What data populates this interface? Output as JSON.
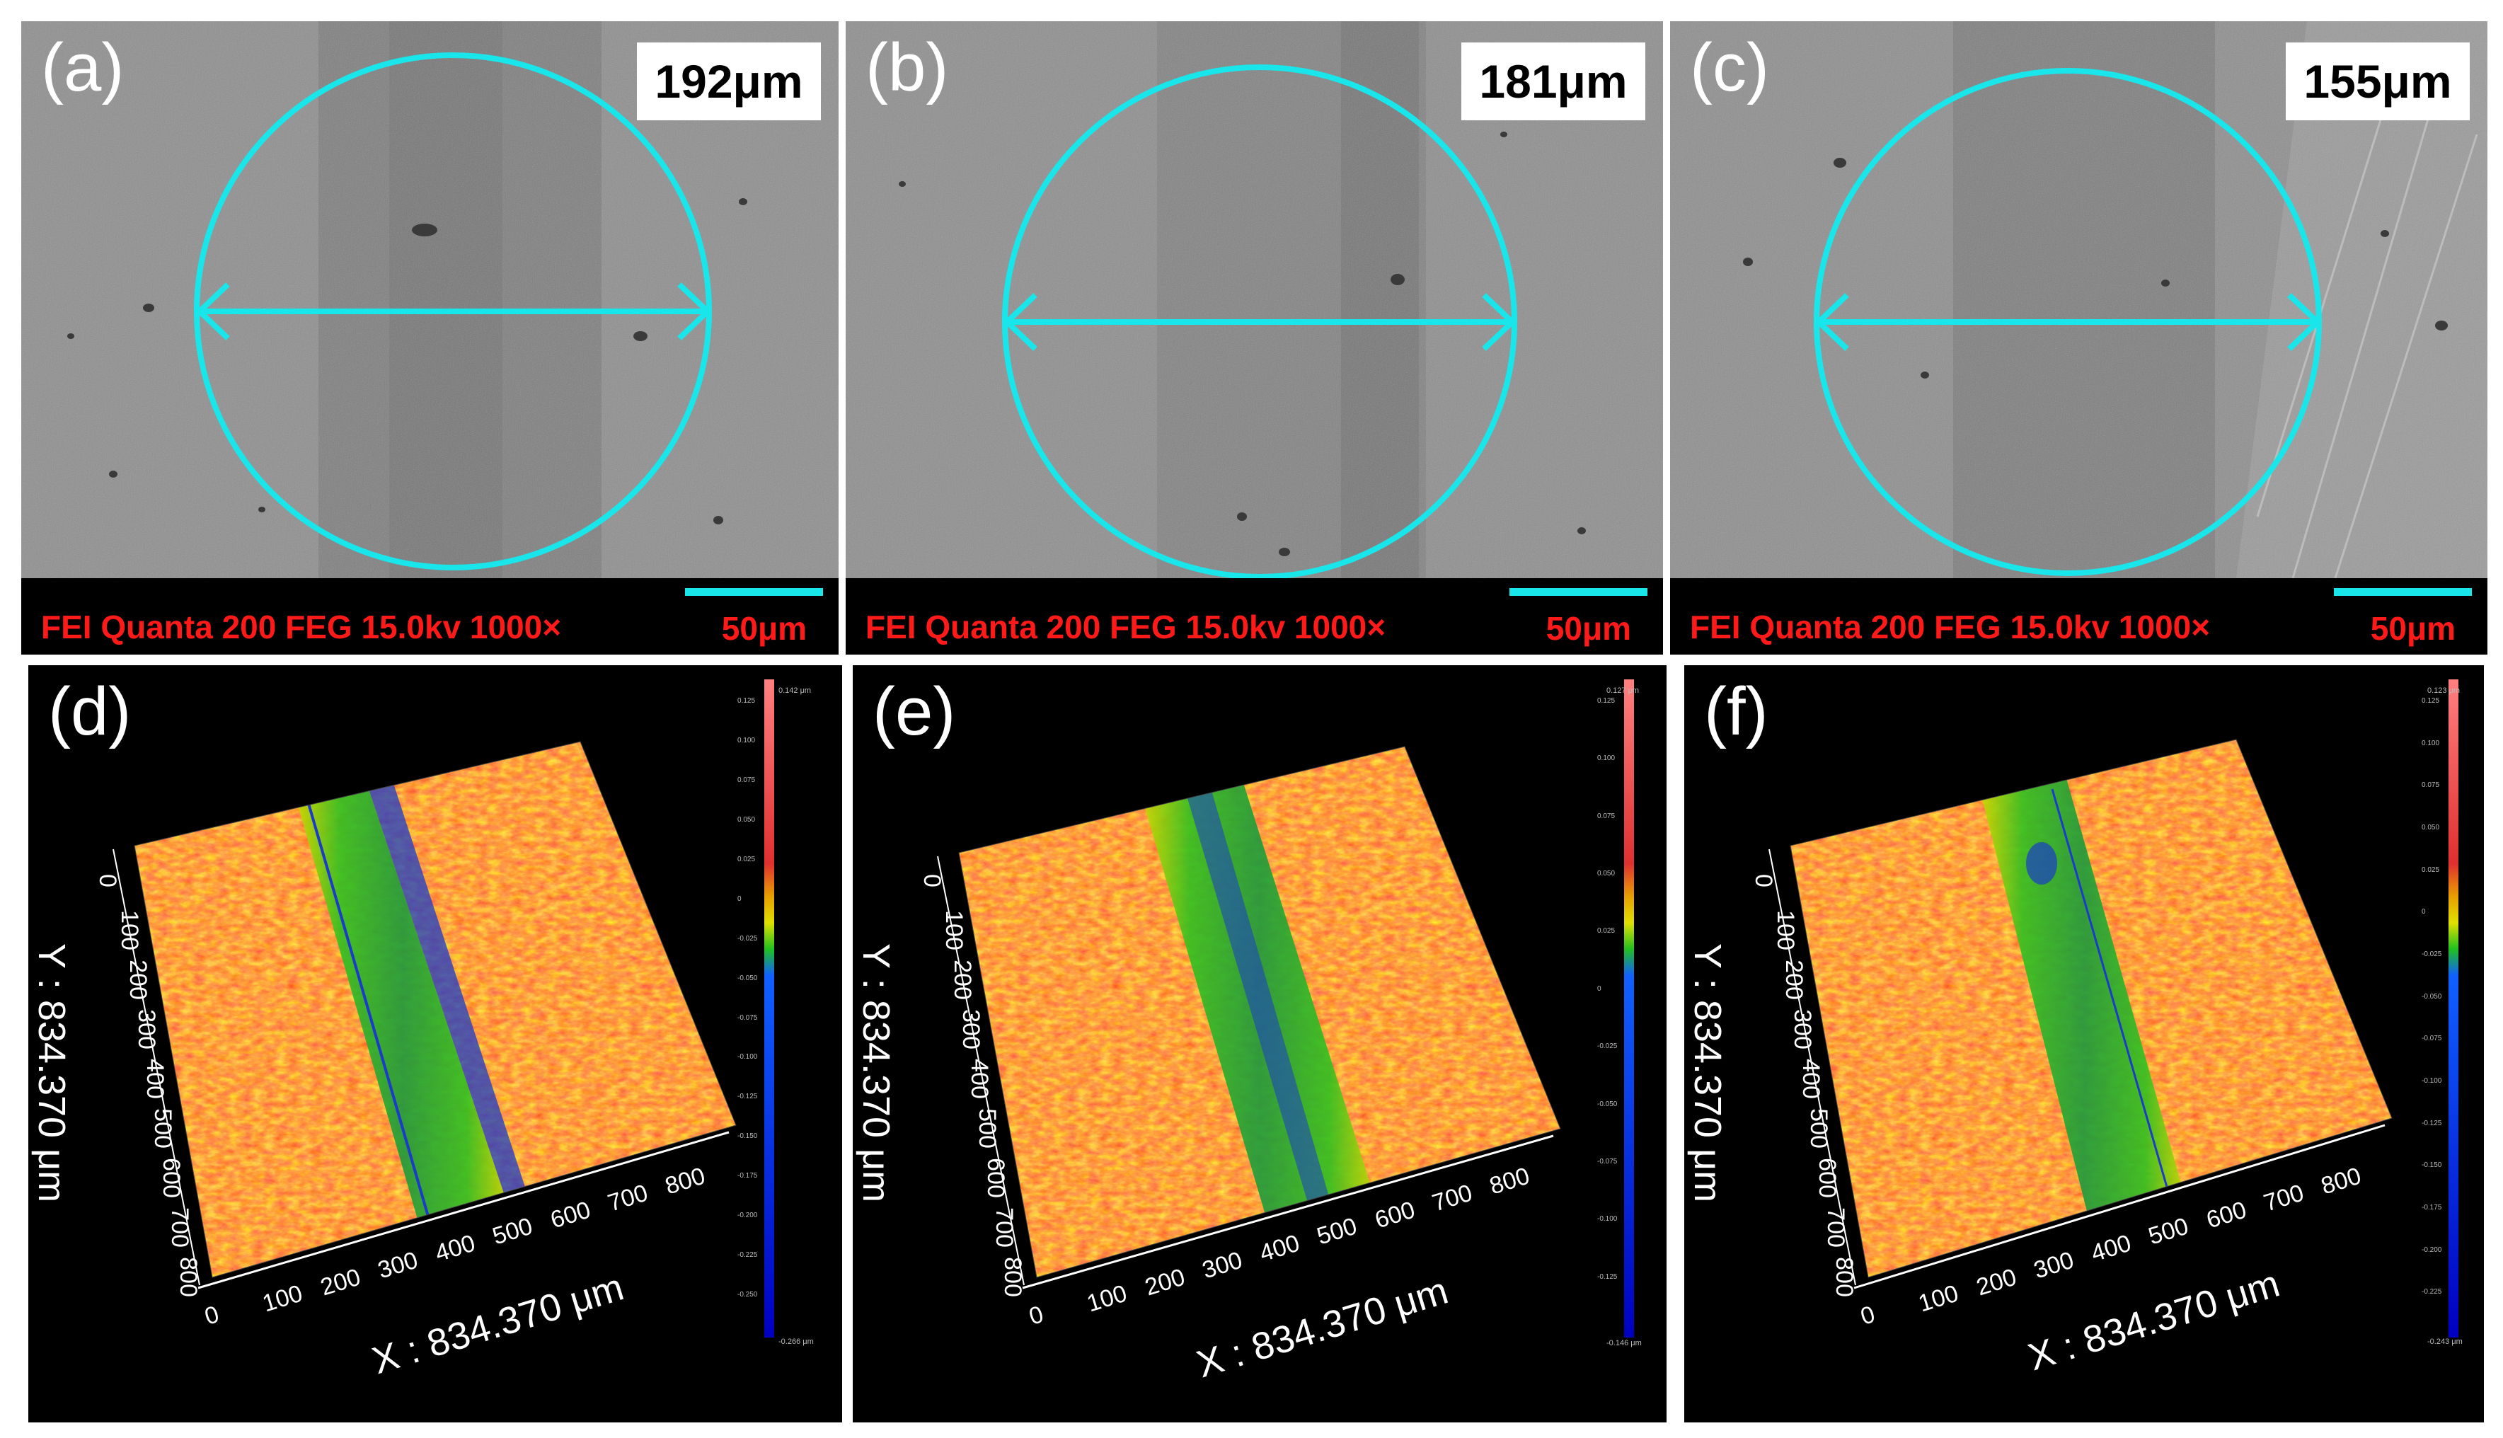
{
  "colors": {
    "circle": "#19e6ea",
    "info_text": "#ff1a1a",
    "scale_bar": "#19e6ea"
  },
  "sem_panels": [
    {
      "label": "(a)",
      "width": "192μm",
      "info": "FEI Quanta 200 FEG 15.0kv 1000×",
      "scale": "50μm"
    },
    {
      "label": "(b)",
      "width": "181μm",
      "info": "FEI Quanta 200 FEG 15.0kv 1000×",
      "scale": "50μm"
    },
    {
      "label": "(c)",
      "width": "155μm",
      "info": "FEI Quanta 200 FEG 15.0kv 1000×",
      "scale": "50μm"
    }
  ],
  "profile_panels": [
    {
      "label": "(d)",
      "x_title": "X : 834.370 μm",
      "y_title": "Y : 834.370 μm",
      "x_ticks": [
        "0",
        "100",
        "200",
        "300",
        "400",
        "500",
        "600",
        "700",
        "800"
      ],
      "y_ticks": [
        "0",
        "100",
        "200",
        "300",
        "400",
        "500",
        "600",
        "700",
        "800"
      ],
      "cb_max": "0.142 μm",
      "cb_min": "-0.266 μm",
      "cb_ticks": [
        "0.125",
        "0.100",
        "0.075",
        "0.050",
        "0.025",
        "0",
        "-0.025",
        "-0.050",
        "-0.075",
        "-0.100",
        "-0.125",
        "-0.150",
        "-0.175",
        "-0.200",
        "-0.225",
        "-0.250"
      ]
    },
    {
      "label": "(e)",
      "x_title": "X : 834.370 μm",
      "y_title": "Y : 834.370 μm",
      "x_ticks": [
        "0",
        "100",
        "200",
        "300",
        "400",
        "500",
        "600",
        "700",
        "800"
      ],
      "y_ticks": [
        "0",
        "100",
        "200",
        "300",
        "400",
        "500",
        "600",
        "700",
        "800"
      ],
      "cb_max": "0.127 μm",
      "cb_min": "-0.146 μm",
      "cb_ticks": [
        "0.125",
        "0.100",
        "0.075",
        "0.050",
        "0.025",
        "0",
        "-0.025",
        "-0.050",
        "-0.075",
        "-0.100",
        "-0.125"
      ]
    },
    {
      "label": "(f)",
      "x_title": "X : 834.370 μm",
      "y_title": "Y : 834.370 μm",
      "x_ticks": [
        "0",
        "100",
        "200",
        "300",
        "400",
        "500",
        "600",
        "700",
        "800"
      ],
      "y_ticks": [
        "0",
        "100",
        "200",
        "300",
        "400",
        "500",
        "600",
        "700",
        "800"
      ],
      "cb_max": "0.123 μm",
      "cb_min": "-0.243 μm",
      "cb_ticks": [
        "0.125",
        "0.100",
        "0.075",
        "0.050",
        "0.025",
        "0",
        "-0.025",
        "-0.050",
        "-0.075",
        "-0.100",
        "-0.125",
        "-0.150",
        "-0.175",
        "-0.200",
        "-0.225"
      ]
    }
  ]
}
